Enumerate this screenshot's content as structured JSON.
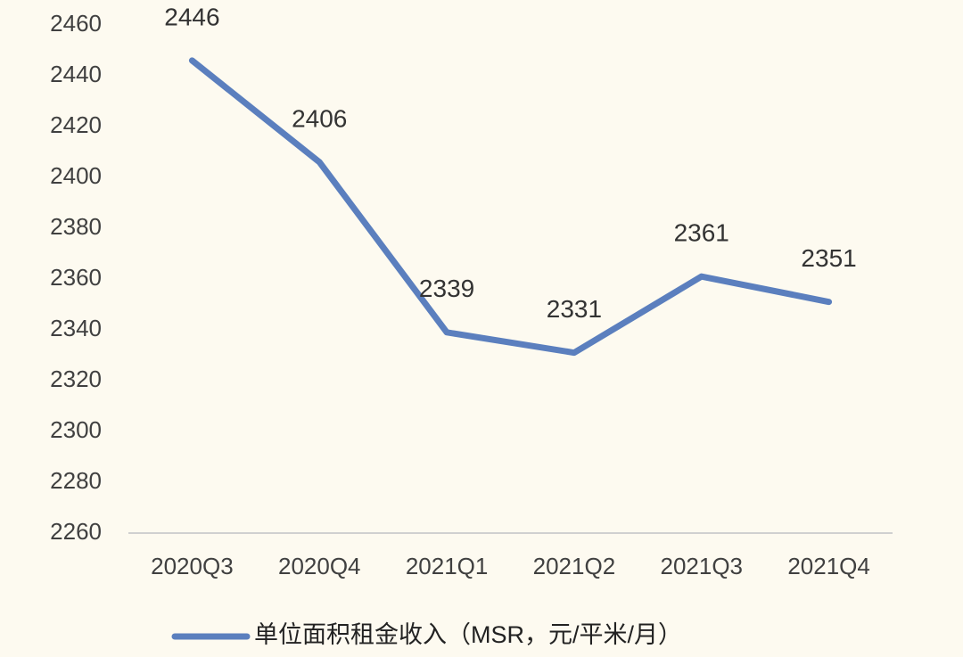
{
  "chart_data": {
    "type": "line",
    "categories": [
      "2020Q3",
      "2020Q4",
      "2021Q1",
      "2021Q2",
      "2021Q3",
      "2021Q4"
    ],
    "series": [
      {
        "name": "单位面积租金收入（MSR，元/平米/月）",
        "color": "#5b7fbe",
        "values": [
          2446,
          2406,
          2339,
          2331,
          2361,
          2351
        ]
      }
    ],
    "ylim": [
      2260,
      2460
    ],
    "yticks": [
      2260,
      2280,
      2300,
      2320,
      2340,
      2360,
      2380,
      2400,
      2420,
      2440,
      2460
    ],
    "grid": false,
    "legend": "bottom"
  }
}
